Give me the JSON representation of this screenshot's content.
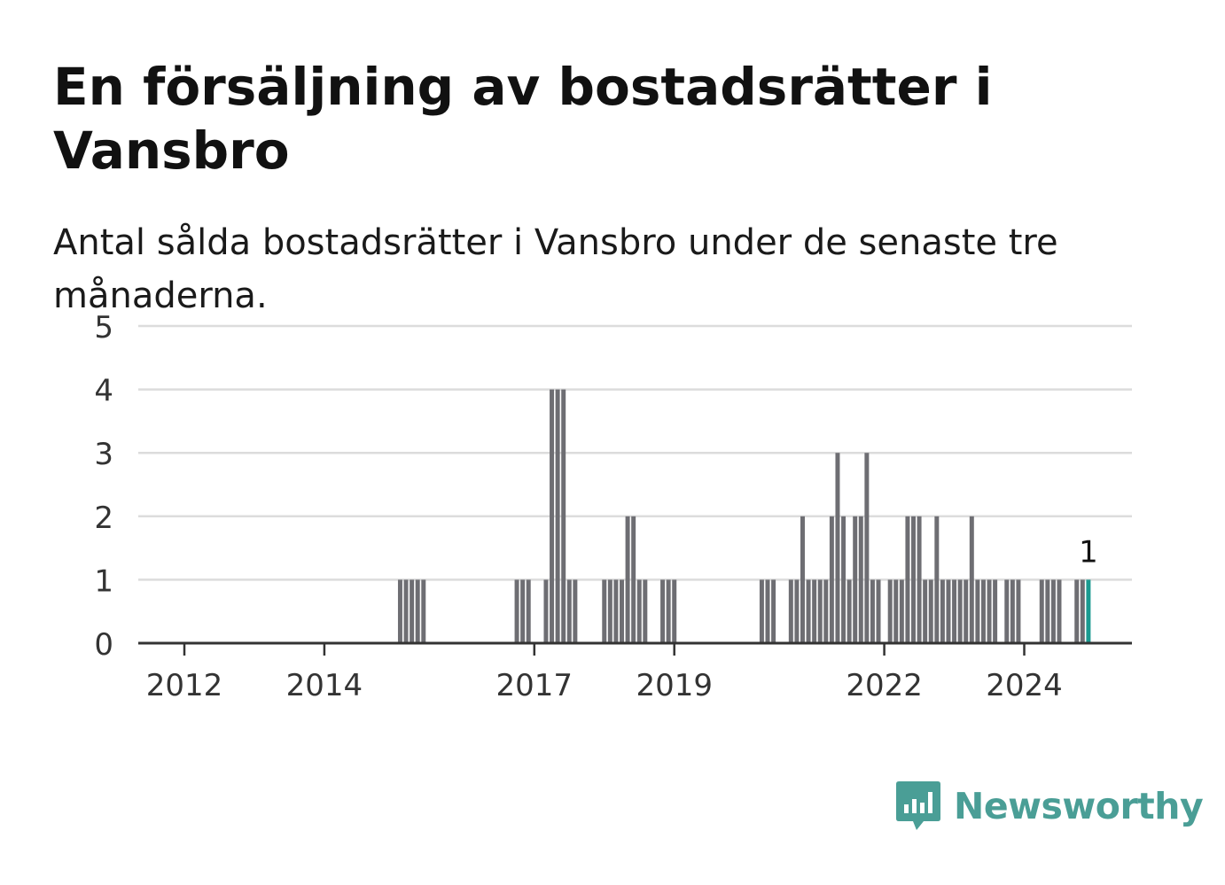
{
  "title": "En försäljning av bostadsrätter i Vansbro",
  "subtitle": "Antal sålda bostadsrätter i Vansbro under de senaste tre månaderna.",
  "brand": {
    "name": "Newsworthy",
    "icon": "bar-chart-speech-bubble-icon",
    "color": "#4a9e96"
  },
  "colors": {
    "bar": "#6e6e73",
    "highlight": "#1a9a90",
    "grid": "#dcdcdc",
    "axis": "#333333"
  },
  "chart_data": {
    "type": "bar",
    "title": "En försäljning av bostadsrätter i Vansbro",
    "subtitle": "Antal sålda bostadsrätter i Vansbro under de senaste tre månaderna.",
    "xlabel": "",
    "ylabel": "",
    "ylim": [
      0,
      5
    ],
    "yticks": [
      0,
      1,
      2,
      3,
      4,
      5
    ],
    "xticks": [
      "2012",
      "2014",
      "2017",
      "2019",
      "2022",
      "2024"
    ],
    "grid": true,
    "x": [
      "2015-02",
      "2015-03",
      "2015-04",
      "2015-05",
      "2015-06",
      "2016-10",
      "2016-11",
      "2016-12",
      "2017-03",
      "2017-04",
      "2017-05",
      "2017-06",
      "2017-07",
      "2017-08",
      "2018-01",
      "2018-02",
      "2018-03",
      "2018-04",
      "2018-05",
      "2018-06",
      "2018-07",
      "2018-08",
      "2018-11",
      "2018-12",
      "2019-01",
      "2020-04",
      "2020-05",
      "2020-06",
      "2020-09",
      "2020-10",
      "2020-11",
      "2020-12",
      "2021-01",
      "2021-02",
      "2021-03",
      "2021-04",
      "2021-05",
      "2021-06",
      "2021-07",
      "2021-08",
      "2021-09",
      "2021-10",
      "2021-11",
      "2021-12",
      "2022-02",
      "2022-03",
      "2022-04",
      "2022-05",
      "2022-06",
      "2022-07",
      "2022-08",
      "2022-09",
      "2022-10",
      "2022-11",
      "2022-12",
      "2023-01",
      "2023-02",
      "2023-03",
      "2023-04",
      "2023-05",
      "2023-06",
      "2023-07",
      "2023-08",
      "2023-10",
      "2023-11",
      "2023-12",
      "2024-04",
      "2024-05",
      "2024-06",
      "2024-07",
      "2024-10",
      "2024-11",
      "2024-12"
    ],
    "values": [
      1,
      1,
      1,
      1,
      1,
      1,
      1,
      1,
      1,
      4,
      4,
      4,
      1,
      1,
      1,
      1,
      1,
      1,
      2,
      2,
      1,
      1,
      1,
      1,
      1,
      1,
      1,
      1,
      1,
      1,
      2,
      1,
      1,
      1,
      1,
      2,
      3,
      2,
      1,
      2,
      2,
      3,
      1,
      1,
      1,
      1,
      1,
      2,
      2,
      2,
      1,
      1,
      2,
      1,
      1,
      1,
      1,
      1,
      2,
      1,
      1,
      1,
      1,
      1,
      1,
      1,
      1,
      1,
      1,
      1,
      1,
      1,
      1
    ],
    "highlight": {
      "x": "2024-12",
      "value": 1,
      "label": "1"
    }
  }
}
